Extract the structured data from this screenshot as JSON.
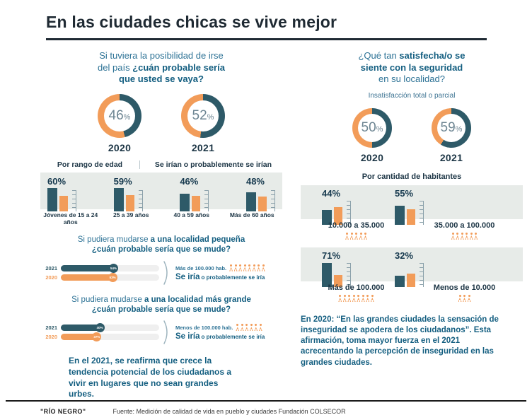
{
  "title": "En las ciudades chicas se vive mejor",
  "pct_symbol": "%",
  "colors": {
    "teal": "#2E5A68",
    "orange": "#F29C59",
    "navy": "#1C3545",
    "blue": "#2E7396",
    "blue_dark": "#135E80",
    "panel_gray": "#E7EBE8"
  },
  "left": {
    "q_line1": "Si tuviera la posibilidad de irse",
    "q_line2_normal": "del país ",
    "q_line2_bold": "¿cuán probable sería",
    "q_line3_bold": "que usted se vaya?",
    "donuts": [
      {
        "year": "2020",
        "value": 46
      },
      {
        "year": "2021",
        "value": 52
      }
    ],
    "subhead_left": "Por rango de edad",
    "subhead_right": "Se irían o probablemente se irían",
    "age_groups": [
      {
        "pct": "60%",
        "label": "Jóvenes de 15 a 24 años",
        "v2021": 60,
        "v2020": 40
      },
      {
        "pct": "59%",
        "label": "25 a 39 años",
        "v2021": 59,
        "v2020": 41
      },
      {
        "pct": "46%",
        "label": "40 a 59 años",
        "v2021": 46,
        "v2020": 40
      },
      {
        "pct": "48%",
        "label": "Más de 60 años",
        "v2021": 48,
        "v2020": 38
      }
    ],
    "move_small": {
      "t1_normal": "Si pudiera mudarse ",
      "t1_bold": "a una localidad pequeña",
      "t2_bold": "¿cuán probable sería que se mude?",
      "rows": [
        {
          "year": "2021",
          "value": 54,
          "pct": "54%"
        },
        {
          "year": "2020",
          "value": 53,
          "pct": "53%"
        }
      ],
      "note_hab": "Más de 100.000 hab.",
      "icons": 8,
      "se_iria": "Se iría",
      "se_iria_rest": "o probablemente se iría"
    },
    "move_big": {
      "t1_normal": "Si pudiera mudarse ",
      "t1_bold": "a una localidad más grande",
      "t2_bold": "¿cuán probable sería que se mude?",
      "rows": [
        {
          "year": "2021",
          "value": 40,
          "pct": "40%"
        },
        {
          "year": "2020",
          "value": 37,
          "pct": "37%"
        }
      ],
      "note_hab": "Menos de 100.000 hab.",
      "icons": 6,
      "se_iria": "Se iría",
      "se_iria_rest": "o probablemente se iría"
    },
    "conclusion": "En el 2021, se reafirma que crece la tendencia potencial de los ciudadanos a vivir en lugares que no sean grandes urbes."
  },
  "right": {
    "q_line1_normal": "¿Qué tan ",
    "q_line1_bold": "satisfecha/o se",
    "q_line2_bold": "siente con la seguridad",
    "q_line3_normal": "en su localidad?",
    "subtitle": "Insatisfacción total o parcial",
    "donuts": [
      {
        "year": "2020",
        "value": 50
      },
      {
        "year": "2021",
        "value": 59
      }
    ],
    "header": "Por cantidad de habitantes",
    "groups": [
      {
        "pct": "44%",
        "label": "10.000 a 35.000",
        "icons": 5,
        "v2021": 44,
        "v2020": 52
      },
      {
        "pct": "55%",
        "label": "35.000 a 100.000",
        "icons": 6,
        "v2021": 55,
        "v2020": 45
      },
      {
        "pct": "71%",
        "label": "Más de 100.000",
        "icons": 8,
        "v2021": 71,
        "v2020": 35
      },
      {
        "pct": "32%",
        "label": "Menos de 10.000",
        "icons": 3,
        "v2021": 32,
        "v2020": 40
      }
    ],
    "conclusion": "En 2020: “En las grandes ciudades la sensación de inseguridad se apodera de los ciudadanos”. Esta afirmación, toma mayor fuerza en el 2021 acrecentando la percepción de inseguridad en las grandes ciudades."
  },
  "footer": {
    "logo": "\"RÍO NEGRO\"",
    "source": "Fuente: Medición de calidad de vida en pueblo y ciudades Fundación COLSECOR"
  },
  "chart_data": [
    {
      "type": "pie",
      "subtype": "donut",
      "title": "Si tuviera la posibilidad de irse del país ¿cuán probable sería que usted se vaya?",
      "categories": [
        "2020",
        "2021"
      ],
      "values": [
        46,
        52
      ],
      "unit": "%",
      "colors": {
        "filled": "#2E5A68",
        "remainder": "#F29C59"
      }
    },
    {
      "type": "bar",
      "title": "Por rango de edad — Se irían o probablemente se irían",
      "categories": [
        "Jóvenes de 15 a 24 años",
        "25 a 39 años",
        "40 a 59 años",
        "Más de 60 años"
      ],
      "series": [
        {
          "name": "2021 (etiquetado)",
          "color": "#2E5A68",
          "values": [
            60,
            59,
            46,
            48
          ]
        },
        {
          "name": "2020 (sin etiqueta, estimado)",
          "color": "#F29C59",
          "values": [
            40,
            41,
            40,
            38
          ]
        }
      ],
      "unit": "%",
      "ylim": [
        0,
        100
      ],
      "grid": false
    },
    {
      "type": "bar",
      "subtype": "horizontal",
      "title": "Si pudiera mudarse a una localidad pequeña ¿cuán probable sería que se mude?",
      "categories": [
        "2021",
        "2020"
      ],
      "values": [
        54,
        53
      ],
      "unit": "%",
      "annotation": "Más de 100.000 hab. — Se iría o probablemente se iría",
      "xlim": [
        0,
        100
      ]
    },
    {
      "type": "bar",
      "subtype": "horizontal",
      "title": "Si pudiera mudarse a una localidad más grande ¿cuán probable sería que se mude?",
      "categories": [
        "2021",
        "2020"
      ],
      "values": [
        40,
        37
      ],
      "unit": "%",
      "annotation": "Menos de 100.000 hab. — Se iría o probablemente se iría",
      "xlim": [
        0,
        100
      ]
    },
    {
      "type": "pie",
      "subtype": "donut",
      "title": "¿Qué tan satisfecha/o se siente con la seguridad en su localidad? — Insatisfacción total o parcial",
      "categories": [
        "2020",
        "2021"
      ],
      "values": [
        50,
        59
      ],
      "unit": "%",
      "colors": {
        "filled": "#2E5A68",
        "remainder": "#F29C59"
      }
    },
    {
      "type": "bar",
      "title": "Por cantidad de habitantes — Insatisfacción total o parcial",
      "categories": [
        "10.000 a 35.000",
        "35.000 a 100.000",
        "Más de 100.000",
        "Menos de 10.000"
      ],
      "series": [
        {
          "name": "2021 (etiquetado)",
          "color": "#2E5A68",
          "values": [
            44,
            55,
            71,
            32
          ]
        },
        {
          "name": "2020 (sin etiqueta, estimado)",
          "color": "#F29C59",
          "values": [
            52,
            45,
            35,
            40
          ]
        }
      ],
      "unit": "%",
      "ylim": [
        0,
        100
      ],
      "grid": false
    }
  ]
}
